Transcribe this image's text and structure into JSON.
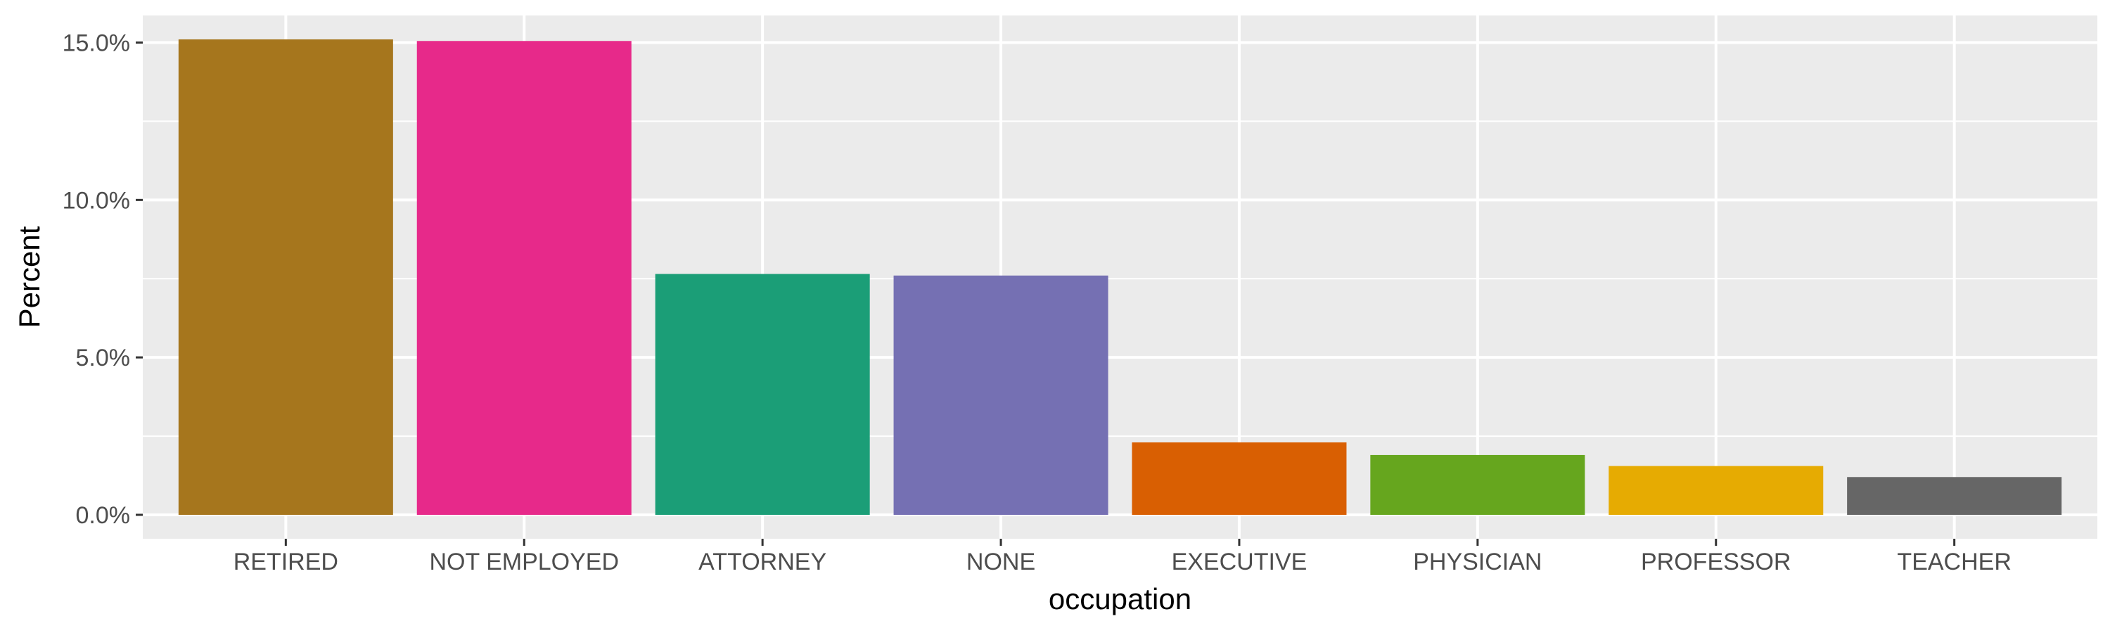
{
  "chart_data": {
    "type": "bar",
    "title": "",
    "xlabel": "occupation",
    "ylabel": "Percent",
    "categories": [
      "RETIRED",
      "NOT EMPLOYED",
      "ATTORNEY",
      "NONE",
      "EXECUTIVE",
      "PHYSICIAN",
      "PROFESSOR",
      "TEACHER"
    ],
    "values": [
      15.1,
      15.05,
      7.65,
      7.6,
      2.3,
      1.9,
      1.55,
      1.2
    ],
    "colors": [
      "#A6761D",
      "#E7298A",
      "#1B9E77",
      "#7570B3",
      "#D95F02",
      "#66A61E",
      "#E6AB02",
      "#666666"
    ],
    "ylim": [
      -0.76,
      15.86
    ],
    "yticks": [
      0,
      5,
      10,
      15
    ],
    "ytick_labels": [
      "0.0%",
      "5.0%",
      "10.0%",
      "15.0%"
    ],
    "grid": true,
    "legend": "none",
    "panel_background": "#EBEBEB",
    "grid_color": "#FFFFFF"
  }
}
